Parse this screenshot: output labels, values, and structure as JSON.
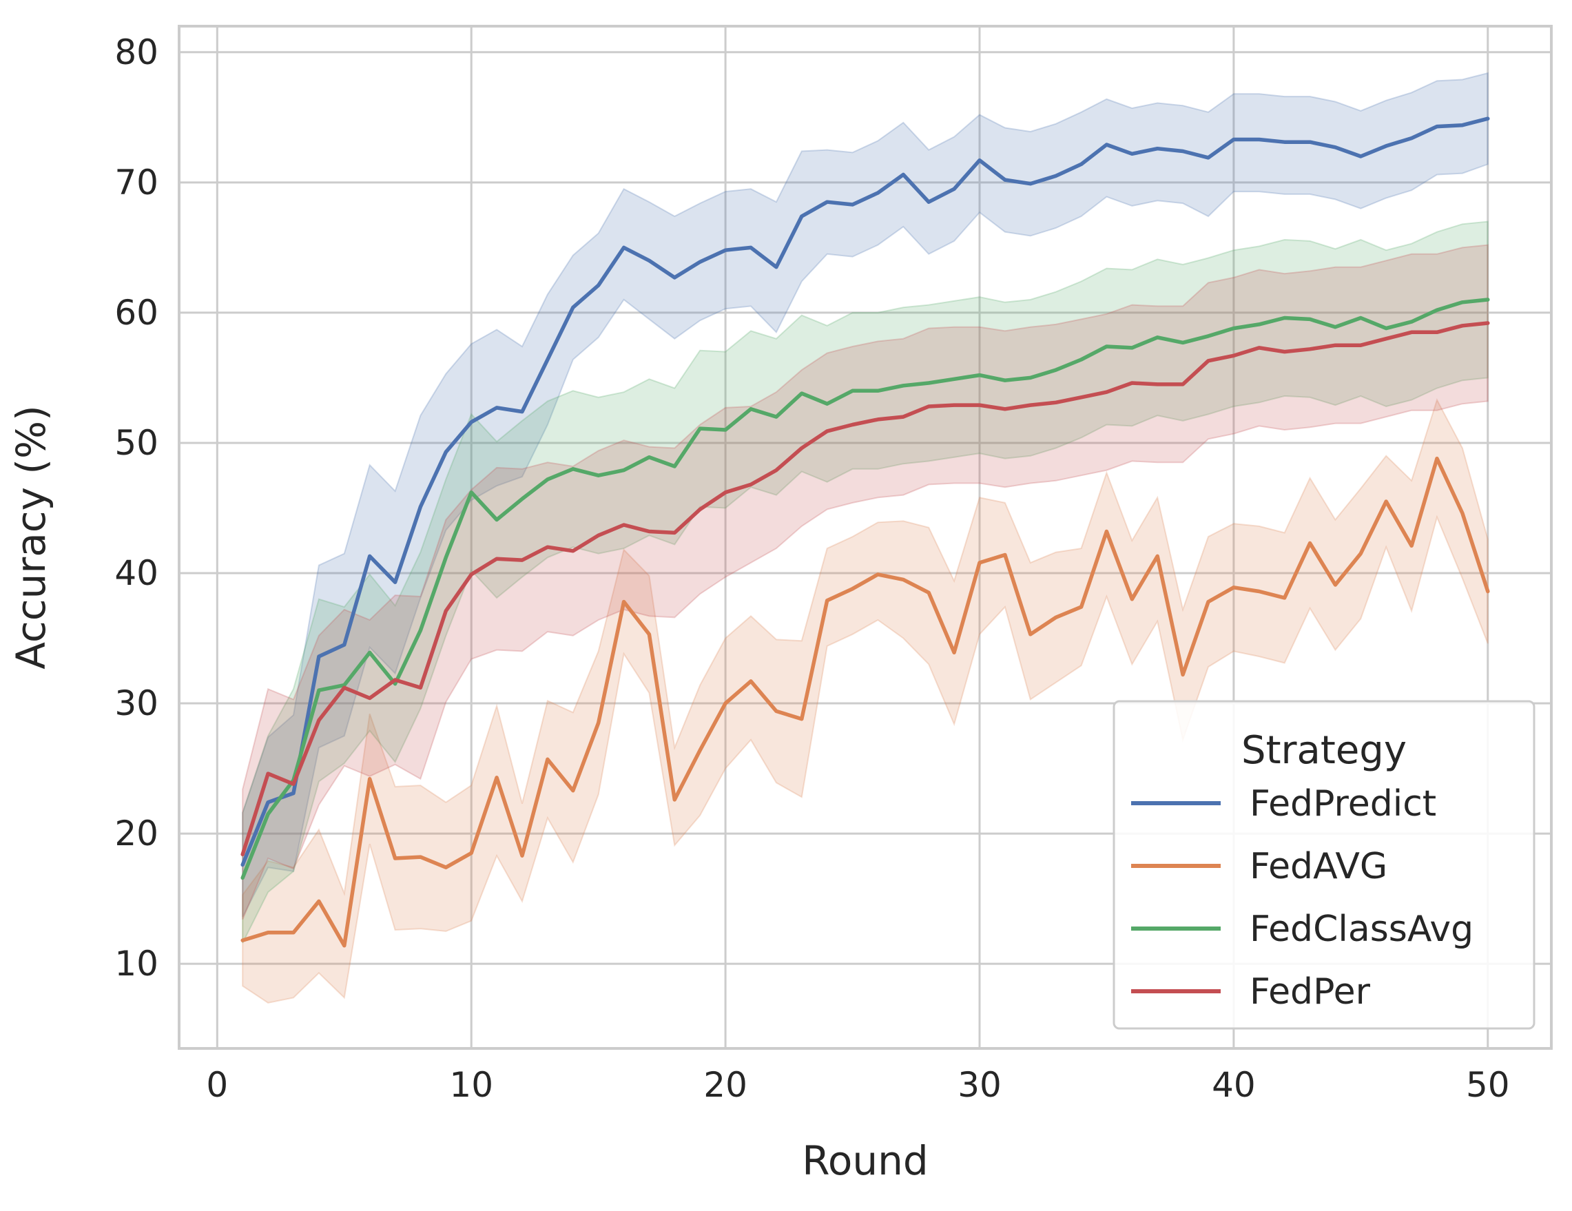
{
  "chart_data": {
    "type": "line",
    "xlabel": "Round",
    "ylabel": "Accuracy (%)",
    "xlim": [
      -1.5,
      52.5
    ],
    "ylim": [
      3.5,
      82
    ],
    "xticks": [
      0,
      10,
      20,
      30,
      40,
      50
    ],
    "yticks": [
      10,
      20,
      30,
      40,
      50,
      60,
      70,
      80
    ],
    "grid": true,
    "legend": {
      "title": "Strategy",
      "placement": "lower-right"
    },
    "x": [
      1,
      2,
      3,
      4,
      5,
      6,
      7,
      8,
      9,
      10,
      11,
      12,
      13,
      14,
      15,
      16,
      17,
      18,
      19,
      20,
      21,
      22,
      23,
      24,
      25,
      26,
      27,
      28,
      29,
      30,
      31,
      32,
      33,
      34,
      35,
      36,
      37,
      38,
      39,
      40,
      41,
      42,
      43,
      44,
      45,
      46,
      47,
      48,
      49,
      50
    ],
    "series": [
      {
        "name": "FedPredict",
        "color": "#4c72b0",
        "values": [
          17.6,
          22.4,
          23.1,
          33.6,
          34.5,
          41.3,
          39.3,
          45.1,
          49.3,
          51.6,
          52.7,
          52.4,
          56.4,
          60.4,
          62.1,
          65.0,
          64.0,
          62.7,
          63.9,
          64.8,
          65.0,
          63.5,
          67.4,
          68.5,
          68.3,
          69.2,
          70.6,
          68.5,
          69.5,
          71.7,
          70.2,
          69.9,
          70.5,
          71.4,
          72.9,
          72.2,
          72.6,
          72.4,
          71.9,
          73.3,
          73.3,
          73.1,
          73.1,
          72.7,
          72.0,
          72.8,
          73.4,
          74.3,
          74.4,
          74.9
        ],
        "lower": [
          13.6,
          17.4,
          17.1,
          26.6,
          27.5,
          34.3,
          32.3,
          38.1,
          43.3,
          45.6,
          46.7,
          47.4,
          51.4,
          56.4,
          58.1,
          61.0,
          59.5,
          58.0,
          59.4,
          60.3,
          60.5,
          58.5,
          62.4,
          64.5,
          64.3,
          65.2,
          66.6,
          64.5,
          65.5,
          67.7,
          66.2,
          65.9,
          66.5,
          67.4,
          68.9,
          68.2,
          68.6,
          68.4,
          67.4,
          69.3,
          69.3,
          69.1,
          69.1,
          68.7,
          68.0,
          68.8,
          69.4,
          70.6,
          70.7,
          71.4
        ],
        "upper": [
          21.6,
          27.4,
          29.1,
          40.6,
          41.5,
          48.3,
          46.3,
          52.1,
          55.3,
          57.6,
          58.7,
          57.4,
          61.4,
          64.4,
          66.1,
          69.5,
          68.5,
          67.4,
          68.4,
          69.3,
          69.5,
          68.5,
          72.4,
          72.5,
          72.3,
          73.2,
          74.6,
          72.5,
          73.5,
          75.2,
          74.2,
          73.9,
          74.5,
          75.4,
          76.4,
          75.7,
          76.1,
          75.9,
          75.4,
          76.8,
          76.8,
          76.6,
          76.6,
          76.2,
          75.5,
          76.3,
          76.9,
          77.8,
          77.9,
          78.4
        ]
      },
      {
        "name": "FedAVG",
        "color": "#dd8452",
        "values": [
          11.8,
          12.4,
          12.4,
          14.8,
          11.4,
          24.2,
          18.1,
          18.2,
          17.4,
          18.5,
          24.3,
          18.3,
          25.7,
          23.3,
          28.5,
          37.8,
          35.3,
          22.6,
          26.4,
          30.0,
          31.7,
          29.4,
          28.8,
          37.9,
          38.8,
          39.9,
          39.5,
          38.5,
          33.9,
          40.8,
          41.4,
          35.3,
          36.6,
          37.4,
          43.2,
          38.0,
          41.3,
          32.2,
          37.8,
          38.9,
          38.6,
          38.1,
          42.3,
          39.1,
          41.5,
          45.5,
          42.1,
          48.8,
          44.6,
          38.6
        ],
        "lower": [
          8.3,
          7.0,
          7.4,
          9.3,
          7.4,
          19.2,
          12.6,
          12.7,
          12.5,
          13.3,
          18.3,
          14.8,
          21.2,
          17.8,
          23.0,
          33.8,
          30.8,
          19.1,
          21.4,
          25.0,
          27.2,
          23.9,
          22.8,
          34.4,
          35.3,
          36.4,
          35.0,
          33.0,
          28.4,
          35.3,
          37.4,
          30.3,
          31.6,
          32.9,
          38.2,
          33.0,
          36.3,
          27.2,
          32.8,
          34.0,
          33.6,
          33.1,
          37.3,
          34.1,
          36.5,
          42.0,
          37.1,
          44.3,
          39.6,
          34.6
        ],
        "upper": [
          15.3,
          17.9,
          17.4,
          20.3,
          15.4,
          29.2,
          23.6,
          23.7,
          22.4,
          23.7,
          29.8,
          22.3,
          30.2,
          29.3,
          34.0,
          41.8,
          39.8,
          26.6,
          31.4,
          35.0,
          36.7,
          34.9,
          34.8,
          41.9,
          42.8,
          43.9,
          44.0,
          43.5,
          39.4,
          45.8,
          45.4,
          40.8,
          41.6,
          41.9,
          47.7,
          42.5,
          45.8,
          37.2,
          42.8,
          43.8,
          43.6,
          43.1,
          47.3,
          44.1,
          46.5,
          49.0,
          47.1,
          53.3,
          49.6,
          42.6
        ],
        "bands_estimated": true
      },
      {
        "name": "FedClassAvg",
        "color": "#55a868",
        "values": [
          16.6,
          21.5,
          24.1,
          31.0,
          31.4,
          33.9,
          31.5,
          35.6,
          41.2,
          46.2,
          44.1,
          45.7,
          47.2,
          48.0,
          47.5,
          47.9,
          48.9,
          48.2,
          51.1,
          51.0,
          52.6,
          52.0,
          53.8,
          53.0,
          54.0,
          54.0,
          54.4,
          54.6,
          54.9,
          55.2,
          54.8,
          55.0,
          55.6,
          56.4,
          57.4,
          57.3,
          58.1,
          57.7,
          58.2,
          58.8,
          59.1,
          59.6,
          59.5,
          58.9,
          59.6,
          58.8,
          59.3,
          60.2,
          60.8,
          61.0
        ],
        "lower": [
          11.6,
          15.5,
          17.1,
          24.0,
          25.4,
          27.9,
          25.5,
          29.6,
          35.2,
          40.2,
          38.1,
          39.7,
          41.2,
          42.0,
          41.5,
          41.9,
          42.9,
          42.2,
          45.1,
          45.0,
          46.6,
          46.0,
          47.8,
          47.0,
          48.0,
          48.0,
          48.4,
          48.6,
          48.9,
          49.2,
          48.8,
          49.0,
          49.6,
          50.4,
          51.4,
          51.3,
          52.1,
          51.7,
          52.2,
          52.8,
          53.1,
          53.6,
          53.5,
          52.9,
          53.6,
          52.8,
          53.3,
          54.2,
          54.8,
          55.0
        ],
        "upper": [
          21.6,
          27.5,
          31.1,
          38.0,
          37.4,
          39.9,
          37.5,
          41.6,
          47.2,
          52.2,
          50.1,
          51.7,
          53.2,
          54.0,
          53.5,
          53.9,
          54.9,
          54.2,
          57.1,
          57.0,
          58.6,
          58.0,
          59.8,
          59.0,
          60.0,
          60.0,
          60.4,
          60.6,
          60.9,
          61.2,
          60.8,
          61.0,
          61.6,
          62.4,
          63.4,
          63.3,
          64.1,
          63.7,
          64.2,
          64.8,
          65.1,
          65.6,
          65.5,
          64.9,
          65.6,
          64.8,
          65.3,
          66.2,
          66.8,
          67.0
        ],
        "bands_estimated": true
      },
      {
        "name": "FedPer",
        "color": "#c44e52",
        "values": [
          18.4,
          24.6,
          23.8,
          28.7,
          31.2,
          30.4,
          31.8,
          31.2,
          37.1,
          39.9,
          41.1,
          41.0,
          42.0,
          41.7,
          42.9,
          43.7,
          43.2,
          43.1,
          44.9,
          46.2,
          46.8,
          47.9,
          49.6,
          50.9,
          51.4,
          51.8,
          52.0,
          52.8,
          52.9,
          52.9,
          52.6,
          52.9,
          53.1,
          53.5,
          53.9,
          54.6,
          54.5,
          54.5,
          56.3,
          56.7,
          57.3,
          57.0,
          57.2,
          57.5,
          57.5,
          58.0,
          58.5,
          58.5,
          59.0,
          59.2
        ],
        "lower": [
          13.4,
          18.1,
          17.3,
          22.2,
          25.2,
          24.4,
          25.3,
          24.2,
          30.1,
          33.4,
          34.1,
          34.0,
          35.5,
          35.2,
          36.4,
          37.2,
          36.7,
          36.6,
          38.4,
          39.7,
          40.8,
          41.9,
          43.6,
          44.9,
          45.4,
          45.8,
          46.0,
          46.8,
          46.9,
          46.9,
          46.6,
          46.9,
          47.1,
          47.5,
          47.9,
          48.6,
          48.5,
          48.5,
          50.3,
          50.7,
          51.3,
          51.0,
          51.2,
          51.5,
          51.5,
          52.0,
          52.5,
          52.5,
          53.0,
          53.2
        ],
        "upper": [
          23.4,
          31.1,
          30.3,
          35.2,
          37.2,
          36.4,
          38.3,
          38.2,
          44.1,
          46.4,
          48.1,
          48.0,
          48.5,
          48.2,
          49.4,
          50.2,
          49.7,
          49.6,
          51.4,
          52.7,
          52.8,
          53.9,
          55.6,
          56.9,
          57.4,
          57.8,
          58.0,
          58.8,
          58.9,
          58.9,
          58.6,
          58.9,
          59.1,
          59.5,
          59.9,
          60.6,
          60.5,
          60.5,
          62.3,
          62.7,
          63.3,
          63.0,
          63.2,
          63.5,
          63.5,
          64.0,
          64.5,
          64.5,
          65.0,
          65.2
        ],
        "bands_estimated": true
      }
    ]
  }
}
